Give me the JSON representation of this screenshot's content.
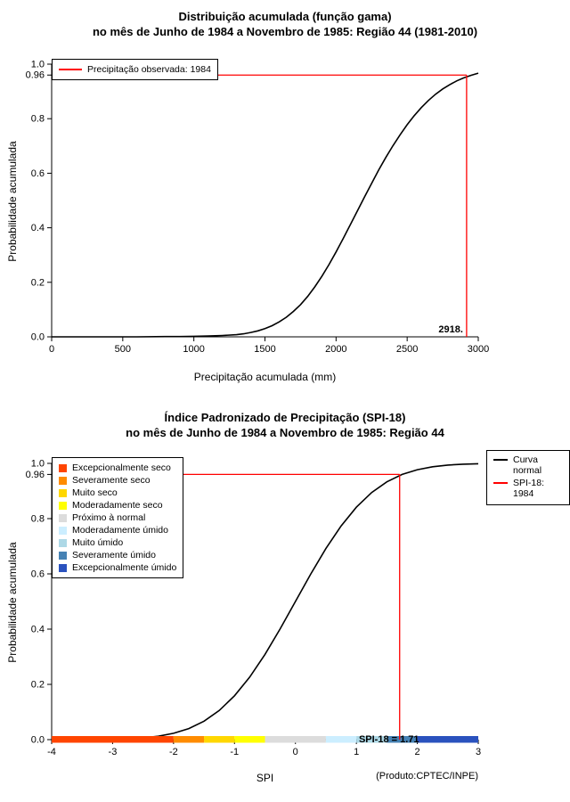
{
  "chart_data": [
    {
      "type": "line",
      "title": "Distribuição acumulada (função gama)",
      "subtitle": "no mês de Junho de 1984 a Novembro de 1985: Região 44 (1981-2010)",
      "xlabel": "Precipitação acumulada (mm)",
      "ylabel": "Probabilidade acumulada",
      "xlim": [
        0,
        3000
      ],
      "ylim": [
        0,
        1
      ],
      "xticks": {
        "values": [
          0,
          500,
          1000,
          1500,
          2000,
          2500,
          3000
        ],
        "labels": [
          "0",
          "500",
          "1000",
          "1500",
          "2000",
          "2500",
          "3000"
        ]
      },
      "yticks": {
        "values": [
          0,
          0.2,
          0.4,
          0.6,
          0.8,
          0.96,
          1.0
        ],
        "labels": [
          "0.0",
          "0.2",
          "0.4",
          "0.6",
          "0.8",
          "0.96",
          "1.0"
        ]
      },
      "series": [
        {
          "name": "Distribuição acumulada (função gama)",
          "color": "#000000",
          "x": [
            0,
            200,
            400,
            600,
            800,
            900,
            1000,
            1100,
            1200,
            1300,
            1350,
            1400,
            1450,
            1500,
            1550,
            1600,
            1650,
            1700,
            1750,
            1800,
            1850,
            1900,
            1950,
            2000,
            2050,
            2100,
            2150,
            2200,
            2250,
            2300,
            2350,
            2400,
            2450,
            2500,
            2550,
            2600,
            2650,
            2700,
            2750,
            2800,
            2850,
            2900,
            2950,
            3000
          ],
          "y": [
            0,
            0,
            0,
            0,
            0.001,
            0.001,
            0.002,
            0.003,
            0.005,
            0.008,
            0.011,
            0.016,
            0.022,
            0.03,
            0.041,
            0.055,
            0.072,
            0.093,
            0.118,
            0.148,
            0.183,
            0.222,
            0.265,
            0.311,
            0.36,
            0.411,
            0.462,
            0.513,
            0.563,
            0.612,
            0.658,
            0.701,
            0.741,
            0.778,
            0.811,
            0.841,
            0.867,
            0.89,
            0.909,
            0.925,
            0.939,
            0.95,
            0.959,
            0.967
          ]
        }
      ],
      "marker": {
        "x": 2918,
        "y": 0.96,
        "color": "#ff0000",
        "label": "2918."
      },
      "legend": {
        "items": [
          {
            "label": "Precipitação observada: 1984",
            "color": "#ff0000"
          }
        ]
      }
    },
    {
      "type": "line",
      "title": "Índice Padronizado de Precipitação (SPI-18)",
      "subtitle": "no mês de Junho de 1984 a Novembro de 1985: Região 44",
      "xlabel": "SPI",
      "ylabel": "Probabilidade acumulada",
      "source_note": "(Produto:CPTEC/INPE)",
      "xlim": [
        -4,
        3
      ],
      "ylim": [
        0,
        1
      ],
      "xticks": {
        "values": [
          -4,
          -3,
          -2,
          -1,
          0,
          1,
          2,
          3
        ],
        "labels": [
          "-4",
          "-3",
          "-2",
          "-1",
          "0",
          "1",
          "2",
          "3"
        ]
      },
      "yticks": {
        "values": [
          0,
          0.2,
          0.4,
          0.6,
          0.8,
          0.96,
          1.0
        ],
        "labels": [
          "0.0",
          "0.2",
          "0.4",
          "0.6",
          "0.8",
          "0.96",
          "1.0"
        ]
      },
      "series": [
        {
          "name": "Curva normal",
          "color": "#000000",
          "x": [
            -4,
            -3.75,
            -3.5,
            -3.25,
            -3,
            -2.75,
            -2.5,
            -2.25,
            -2,
            -1.75,
            -1.5,
            -1.25,
            -1,
            -0.75,
            -0.5,
            -0.25,
            0,
            0.25,
            0.5,
            0.75,
            1,
            1.25,
            1.5,
            1.75,
            2,
            2.25,
            2.5,
            2.75,
            3
          ],
          "y": [
            3e-05,
            9e-05,
            0.00023,
            0.00058,
            0.00135,
            0.003,
            0.0062,
            0.0122,
            0.0228,
            0.0401,
            0.0668,
            0.1056,
            0.1587,
            0.2266,
            0.3085,
            0.4013,
            0.5,
            0.5987,
            0.6915,
            0.7734,
            0.8413,
            0.8944,
            0.9332,
            0.9599,
            0.9772,
            0.9878,
            0.9938,
            0.997,
            0.9987
          ]
        }
      ],
      "marker": {
        "x": 1.71,
        "y": 0.96,
        "color": "#ff0000",
        "label": "SPI-18 = 1.71"
      },
      "legend": {
        "items": [
          {
            "label": "Curva normal",
            "color": "#000000"
          },
          {
            "label": "SPI-18: 1984",
            "color": "#ff0000"
          }
        ]
      },
      "categories": [
        {
          "label": "Excepcionalmente seco",
          "range": [
            -4,
            -2
          ],
          "color": "#ff4500"
        },
        {
          "label": "Severamente seco",
          "range": [
            -2,
            -1.5
          ],
          "color": "#ff8c00"
        },
        {
          "label": "Muito seco",
          "range": [
            -1.5,
            -1
          ],
          "color": "#ffd700"
        },
        {
          "label": "Moderadamente seco",
          "range": [
            -1,
            -0.5
          ],
          "color": "#ffff00"
        },
        {
          "label": "Próximo à normal",
          "range": [
            -0.5,
            0.5
          ],
          "color": "#dcdcdc"
        },
        {
          "label": "Moderadamente úmido",
          "range": [
            0.5,
            1
          ],
          "color": "#cceeff"
        },
        {
          "label": "Muito úmido",
          "range": [
            1,
            1.5
          ],
          "color": "#add8e6"
        },
        {
          "label": "Severamente úmido",
          "range": [
            1.5,
            2
          ],
          "color": "#4682b4"
        },
        {
          "label": "Excepcionalmente úmido",
          "range": [
            2,
            3
          ],
          "color": "#2a52be"
        }
      ]
    }
  ]
}
